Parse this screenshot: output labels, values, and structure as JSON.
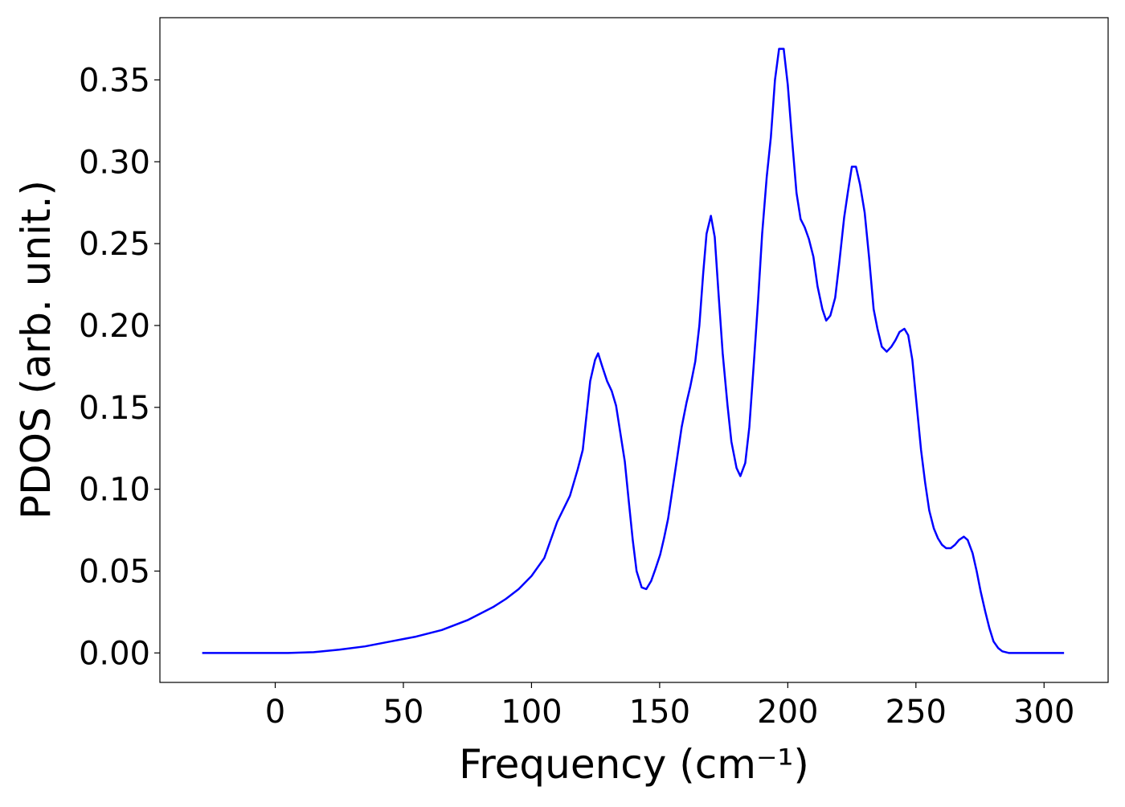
{
  "chart_data": {
    "type": "line",
    "xlabel": "Frequency (cm⁻¹)",
    "ylabel": "PDOS (arb. unit.)",
    "xlim": [
      -45,
      325
    ],
    "ylim": [
      -0.018,
      0.388
    ],
    "xticks": [
      0,
      50,
      100,
      150,
      200,
      250,
      300
    ],
    "yticks": [
      {
        "value": 0,
        "label": "0.00"
      },
      {
        "value": 0.05,
        "label": "0.05"
      },
      {
        "value": 0.1,
        "label": "0.10"
      },
      {
        "value": 0.15,
        "label": "0.15"
      },
      {
        "value": 0.2,
        "label": "0.20"
      },
      {
        "value": 0.25,
        "label": "0.25"
      },
      {
        "value": 0.3,
        "label": "0.30"
      },
      {
        "value": 0.35,
        "label": "0.35"
      }
    ],
    "grid": false,
    "series": [
      {
        "color": "#0000ff",
        "x": [
          -28.5,
          0,
          5,
          15,
          25,
          35,
          45,
          55,
          65,
          75,
          85,
          90,
          95,
          100,
          105,
          110,
          115,
          118,
          120,
          122.9,
          124.8,
          126,
          127.6,
          129.5,
          131.3,
          133,
          134.5,
          136.4,
          138,
          139.5,
          141,
          143,
          144.8,
          146.7,
          148.3,
          150.2,
          151.7,
          153.3,
          155.2,
          157,
          158.6,
          160.5,
          162,
          163.9,
          165.5,
          167,
          168.3,
          170,
          171.5,
          173,
          174.6,
          176.5,
          178,
          180,
          181.5,
          183.4,
          185,
          186.8,
          188.4,
          190,
          191.8,
          193.4,
          195,
          196.6,
          198.4,
          200,
          201.6,
          203.4,
          205,
          206.6,
          208.2,
          210,
          211.6,
          213.5,
          215,
          216.6,
          218.5,
          220,
          222,
          223.5,
          225,
          226.6,
          228.2,
          230,
          231.7,
          233.5,
          235,
          236.7,
          238.6,
          240.4,
          242,
          243.6,
          245.5,
          247,
          248.6,
          250.2,
          252,
          253.6,
          255.2,
          257,
          258.6,
          260.2,
          261.8,
          263.6,
          265.2,
          266.8,
          268.7,
          270.2,
          272.1,
          273.7,
          275.2,
          277.1,
          278.7,
          280.3,
          282.1,
          283.7,
          286.2,
          307.8
        ],
        "values": [
          0,
          0,
          0,
          0.0005,
          0.002,
          0.004,
          0.007,
          0.01,
          0.014,
          0.02,
          0.028,
          0.033,
          0.039,
          0.047,
          0.058,
          0.08,
          0.096,
          0.112,
          0.124,
          0.166,
          0.179,
          0.183,
          0.175,
          0.166,
          0.16,
          0.151,
          0.136,
          0.117,
          0.092,
          0.069,
          0.05,
          0.04,
          0.039,
          0.044,
          0.051,
          0.06,
          0.07,
          0.082,
          0.102,
          0.121,
          0.138,
          0.153,
          0.163,
          0.178,
          0.2,
          0.232,
          0.256,
          0.267,
          0.254,
          0.219,
          0.183,
          0.151,
          0.129,
          0.113,
          0.108,
          0.116,
          0.138,
          0.178,
          0.215,
          0.256,
          0.291,
          0.315,
          0.35,
          0.369,
          0.369,
          0.347,
          0.315,
          0.281,
          0.265,
          0.26,
          0.253,
          0.242,
          0.224,
          0.21,
          0.203,
          0.206,
          0.217,
          0.237,
          0.266,
          0.282,
          0.297,
          0.297,
          0.286,
          0.269,
          0.242,
          0.21,
          0.198,
          0.187,
          0.184,
          0.187,
          0.191,
          0.196,
          0.198,
          0.194,
          0.179,
          0.153,
          0.124,
          0.104,
          0.087,
          0.076,
          0.07,
          0.066,
          0.064,
          0.064,
          0.066,
          0.069,
          0.071,
          0.069,
          0.061,
          0.05,
          0.038,
          0.025,
          0.015,
          0.007,
          0.003,
          0.001,
          0,
          0
        ]
      }
    ]
  }
}
